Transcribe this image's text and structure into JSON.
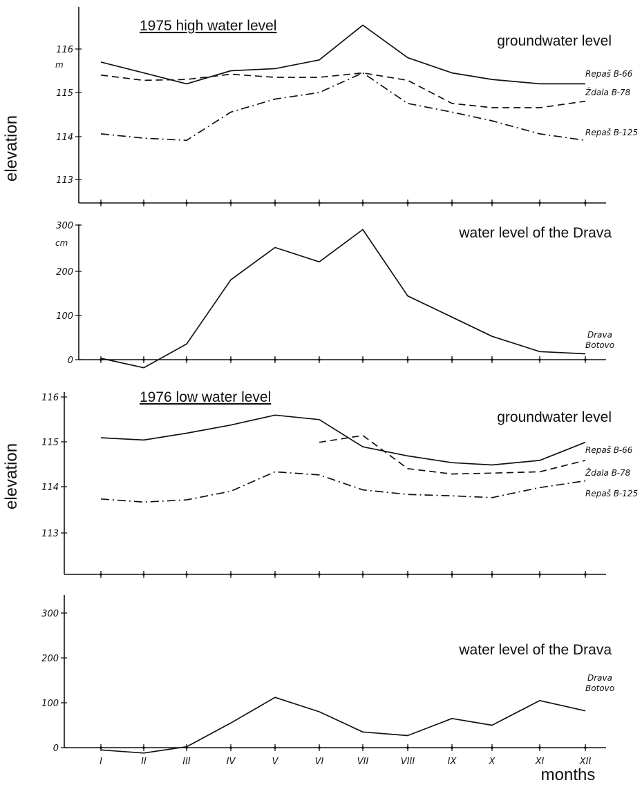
{
  "labels": {
    "ylabel_top": "elevation",
    "ylabel_bottom": "elevation",
    "xlabel": "months"
  },
  "chart_data": [
    {
      "type": "line",
      "title": "1975 high water level",
      "subtitle": "groundwater level",
      "unit": "m",
      "ylim": [
        112.5,
        116.4
      ],
      "yticks": [
        "113",
        "114",
        "115",
        "116"
      ],
      "x": [
        "I",
        "II",
        "III",
        "IV",
        "V",
        "VI",
        "VII",
        "VIII",
        "IX",
        "X",
        "XI",
        "XII"
      ],
      "series": [
        {
          "name": "Repaš B-66",
          "style": "solid",
          "values": [
            115.7,
            115.45,
            115.2,
            115.5,
            115.55,
            115.75,
            116.55,
            115.8,
            115.45,
            115.3,
            115.2,
            115.2
          ]
        },
        {
          "name": "Ždala B-78",
          "style": "dashed",
          "values": [
            115.4,
            115.28,
            115.3,
            115.42,
            115.35,
            115.35,
            115.45,
            115.28,
            114.75,
            114.65,
            114.65,
            114.8
          ]
        },
        {
          "name": "Repaš B-125",
          "style": "dashdot",
          "values": [
            114.05,
            113.95,
            113.9,
            114.55,
            114.85,
            115.0,
            115.45,
            114.75,
            114.55,
            114.35,
            114.05,
            113.9
          ]
        }
      ]
    },
    {
      "type": "line",
      "subtitle": "water level of the Drava",
      "unit": "cm",
      "ylim": [
        -25,
        305
      ],
      "yticks": [
        "0",
        "100",
        "200",
        "300"
      ],
      "x": [
        "I",
        "II",
        "III",
        "IV",
        "V",
        "VI",
        "VII",
        "VIII",
        "IX",
        "X",
        "XI",
        "XII"
      ],
      "series": [
        {
          "name": "Drava Botovo",
          "style": "solid",
          "values": [
            3,
            -18,
            35,
            178,
            250,
            218,
            290,
            142,
            95,
            52,
            18,
            13
          ]
        }
      ]
    },
    {
      "type": "line",
      "title": "1976 low water level",
      "subtitle": "groundwater level",
      "ylim": [
        112.5,
        116.4
      ],
      "yticks": [
        "113",
        "114",
        "115",
        "116"
      ],
      "x": [
        "I",
        "II",
        "III",
        "IV",
        "V",
        "VI",
        "VII",
        "VIII",
        "IX",
        "X",
        "XI",
        "XII"
      ],
      "series": [
        {
          "name": "Repaš B-66",
          "style": "solid",
          "values": [
            115.1,
            115.05,
            115.2,
            115.38,
            115.6,
            115.5,
            114.9,
            114.7,
            114.55,
            114.5,
            114.6,
            115.0
          ]
        },
        {
          "name": "Ždala B-78",
          "style": "dashed",
          "values": [
            null,
            null,
            null,
            null,
            null,
            115.0,
            115.15,
            114.42,
            114.3,
            114.32,
            114.35,
            114.6
          ]
        },
        {
          "name": "Repaš B-125",
          "style": "dashdot",
          "values": [
            113.75,
            113.68,
            113.73,
            113.92,
            114.35,
            114.28,
            113.95,
            113.85,
            113.82,
            113.78,
            114.0,
            114.15
          ]
        }
      ]
    },
    {
      "type": "line",
      "subtitle": "water level of the Drava",
      "ylim": [
        -15,
        305
      ],
      "yticks": [
        "0",
        "100",
        "200",
        "300"
      ],
      "x": [
        "I",
        "II",
        "III",
        "IV",
        "V",
        "VI",
        "VII",
        "VIII",
        "IX",
        "X",
        "XI",
        "XII"
      ],
      "x_tick_labels": [
        "I",
        "II",
        "III",
        "IV",
        "V",
        "VI",
        "VII",
        "VIII",
        "IX",
        "X",
        "XI",
        "XII"
      ],
      "series": [
        {
          "name": "Drava Botovo",
          "style": "solid",
          "values": [
            -5,
            -12,
            2,
            55,
            112,
            80,
            35,
            27,
            65,
            50,
            105,
            82
          ]
        }
      ]
    }
  ]
}
